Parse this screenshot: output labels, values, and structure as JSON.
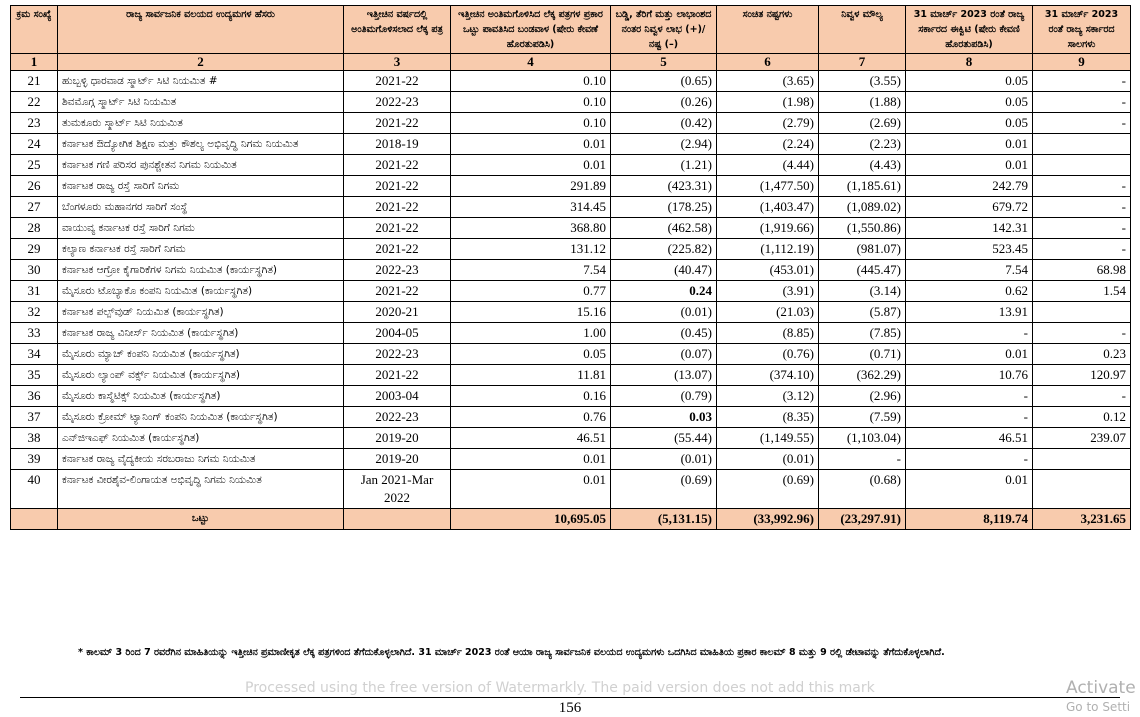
{
  "table": {
    "header": [
      "ಕ್ರಮ ಸಂಖ್ಯೆ",
      "ರಾಜ್ಯ ಸಾರ್ವಜನಿಕ ವಲಯದ ಉದ್ಯಮಗಳ ಹೆಸರು",
      "ಇತ್ತೀಚಿನ ವರ್ಷದಲ್ಲಿ ಅಂತಿಮಗೊಳಿಸಲಾದ ಲೆಕ್ಕ ಪತ್ರ",
      "ಇತ್ತೀಚಿನ ಅಂತಿಮಗೊಳಿಸಿದ ಲೆಕ್ಕ ಪತ್ರಗಳ ಪ್ರಕಾರ ಒಟ್ಟು ಪಾವತಿಸಿದ ಬಂಡವಾಳ (ಷೇರು ಕೇವಣೆ ಹೊರತುಪಡಿಸಿ)",
      "ಬಡ್ಡಿ, ತೆರಿಗೆ ಮತ್ತು ಲಾಭಾಂಶದ ನಂತರ ನಿವ್ವಳ ಲಾಭ (+)/ ನಷ್ಟ (–)",
      "ಸಂಚಿತ ನಷ್ಟಗಳು",
      "ನಿವ್ವಳ ಮೌಲ್ಯ",
      "31 ಮಾರ್ಚ್ 2023 ರಂತೆ ರಾಜ್ಯ ಸರ್ಕಾರದ ಈಕ್ವಿಟಿ (ಷೇರು ಕೇವಣಿ ಹೊರತುಪಡಿಸಿ)",
      "31 ಮಾರ್ಚ್ 2023 ರಂತೆ ರಾಜ್ಯ ಸರ್ಕಾರದ ಸಾಲಗಳು"
    ],
    "column_numbers": [
      1,
      2,
      3,
      4,
      5,
      6,
      7,
      8,
      9
    ],
    "rows": [
      [
        "21",
        "ಹುಬ್ಬಳ್ಳಿ ಧಾರವಾಡ ಸ್ಮಾರ್ಟ್ ಸಿಟಿ ನಿಯಮಿತ #",
        "2021-22",
        "0.10",
        "(0.65)",
        "(3.65)",
        "(3.55)",
        "0.05",
        "-"
      ],
      [
        "22",
        "ಶಿವಮೊಗ್ಗ ಸ್ಮಾರ್ಟ್ ಸಿಟಿ ನಿಯಮಿತ",
        "2022-23",
        "0.10",
        "(0.26)",
        "(1.98)",
        "(1.88)",
        "0.05",
        "-"
      ],
      [
        "23",
        "ತುಮಕೂರು ಸ್ಮಾರ್ಟ್ ಸಿಟಿ ನಿಯಮಿತ",
        "2021-22",
        "0.10",
        "(0.42)",
        "(2.79)",
        "(2.69)",
        "0.05",
        "-"
      ],
      [
        "24",
        "ಕರ್ನಾಟಕ ಔದ್ಯೋಗಿಕ ಶಿಕ್ಷಣ ಮತ್ತು ಕೌಶಲ್ಯ ಅಭಿವೃದ್ಧಿ ನಿಗಮ ನಿಯಮಿತ",
        "2018-19",
        "0.01",
        "(2.94)",
        "(2.24)",
        "(2.23)",
        "0.01",
        null
      ],
      [
        "25",
        "ಕರ್ನಾಟಕ ಗಣಿ ಪರಿಸರ ಪುನಶ್ಚೇತನ ನಿಗಮ ನಿಯಮಿತ",
        "2021-22",
        "0.01",
        "(1.21)",
        "(4.44)",
        "(4.43)",
        "0.01",
        null
      ],
      [
        "26",
        "ಕರ್ನಾಟಕ ರಾಜ್ಯ ರಸ್ತೆ ಸಾರಿಗೆ ನಿಗಮ",
        "2021-22",
        "291.89",
        "(423.31)",
        "(1,477.50)",
        "(1,185.61)",
        "242.79",
        "-"
      ],
      [
        "27",
        "ಬೆಂಗಳೂರು ಮಹಾನಗರ ಸಾರಿಗೆ ಸಂಸ್ಥೆ",
        "2021-22",
        "314.45",
        "(178.25)",
        "(1,403.47)",
        "(1,089.02)",
        "679.72",
        "-"
      ],
      [
        "28",
        "ವಾಯುವ್ಯ ಕರ್ನಾಟಕ ರಸ್ತೆ ಸಾರಿಗೆ ನಿಗಮ",
        "2021-22",
        "368.80",
        "(462.58)",
        "(1,919.66)",
        "(1,550.86)",
        "142.31",
        "-"
      ],
      [
        "29",
        "ಕಲ್ಯಾಣ ಕರ್ನಾಟಕ ರಸ್ತೆ ಸಾರಿಗೆ ನಿಗಮ",
        "2021-22",
        "131.12",
        "(225.82)",
        "(1,112.19)",
        "(981.07)",
        "523.45",
        "-"
      ],
      [
        "30",
        "ಕರ್ನಾಟಕ ಆಗ್ರೋ ಕೈಗಾರಿಕೆಗಳ ನಿಗಮ ನಿಯಮಿತ (ಕಾರ್ಯಸ್ಥಗಿತ)",
        "2022-23",
        "7.54",
        "(40.47)",
        "(453.01)",
        "(445.47)",
        "7.54",
        "68.98"
      ],
      [
        "31",
        "ಮೈಸೂರು ಟೊಬ್ಯಾಕೊ ಕಂಪನಿ ನಿಯಮಿತ (ಕಾರ್ಯಸ್ಥಗಿತ)",
        "2021-22",
        "0.77",
        "0.24",
        "(3.91)",
        "(3.14)",
        "0.62",
        "1.54"
      ],
      [
        "32",
        "ಕರ್ನಾಟಕ ಪಲ್ಪ್‌ವುಡ್ ನಿಯಮಿತ (ಕಾರ್ಯಸ್ಥಗಿತ)",
        "2020-21",
        "15.16",
        "(0.01)",
        "(21.03)",
        "(5.87)",
        "13.91",
        null
      ],
      [
        "33",
        "ಕರ್ನಾಟಕ ರಾಜ್ಯ ವಿನೀರ್ಸ್ ನಿಯಮಿತ (ಕಾರ್ಯಸ್ಥಗಿತ)",
        "2004-05",
        "1.00",
        "(0.45)",
        "(8.85)",
        "(7.85)",
        "-",
        "-"
      ],
      [
        "34",
        "ಮೈಸೂರು ಮ್ಯಾಚ್ ಕಂಪನಿ ನಿಯಮಿತ (ಕಾರ್ಯಸ್ಥಗಿತ)",
        "2022-23",
        "0.05",
        "(0.07)",
        "(0.76)",
        "(0.71)",
        "0.01",
        "0.23"
      ],
      [
        "35",
        "ಮೈಸೂರು ಲ್ಯಾಂಪ್ ವರ್ಕ್ಸ್ ನಿಯಮಿತ (ಕಾರ್ಯಸ್ಥಗಿತ)",
        "2021-22",
        "11.81",
        "(13.07)",
        "(374.10)",
        "(362.29)",
        "10.76",
        "120.97"
      ],
      [
        "36",
        "ಮೈಸೂರು ಕಾಸ್ಮೆಟಿಕ್ಸ್ ನಿಯಮಿತ (ಕಾರ್ಯಸ್ಥಗಿತ)",
        "2003-04",
        "0.16",
        "(0.79)",
        "(3.12)",
        "(2.96)",
        "-",
        "-"
      ],
      [
        "37",
        "ಮೈಸೂರು ಕ್ರೋಮ್ ಟ್ಯಾನಿಂಗ್ ಕಂಪನಿ ನಿಯಮಿತ (ಕಾರ್ಯಸ್ಥಗಿತ)",
        "2022-23",
        "0.76",
        "0.03",
        "(8.35)",
        "(7.59)",
        "-",
        "0.12"
      ],
      [
        "38",
        "ಎನ್‌ಜಿಇಎಫ್ ನಿಯಮಿತ (ಕಾರ್ಯಸ್ಥಗಿತ)",
        "2019-20",
        "46.51",
        "(55.44)",
        "(1,149.55)",
        "(1,103.04)",
        "46.51",
        "239.07"
      ],
      [
        "39",
        "ಕರ್ನಾಟಕ ರಾಜ್ಯ ವೈದ್ಯಕೀಯ ಸರಬರಾಜು ನಿಗಮ ನಿಯಮಿತ",
        "2019-20",
        "0.01",
        "(0.01)",
        "(0.01)",
        "-",
        "-",
        null
      ],
      [
        "40",
        "ಕರ್ನಾಟಕ ವೀರಶೈವ-ಲಿಂಗಾಯತ ಅಭಿವೃದ್ಧಿ ನಿಗಮ ನಿಯಮಿತ",
        "Jan 2021-Mar 2022",
        "0.01",
        "(0.69)",
        "(0.69)",
        "(0.68)",
        "0.01",
        null
      ]
    ],
    "total": {
      "label": "ಒಟ್ಟು",
      "values": [
        "10,695.05",
        "(5,131.15)",
        "(33,992.96)",
        "(23,297.91)",
        "8,119.74",
        "3,231.65"
      ]
    }
  },
  "footnote": "* ಕಾಲಮ್ 3 ರಿಂದ 7 ರವರೆಗಿನ ಮಾಹಿತಿಯನ್ನು ಇತ್ತೀಚಿನ ಪ್ರಮಾಣೀಕೃತ ಲೆಕ್ಕ ಪತ್ರಗಳಿಂದ ತೆಗೆದುಕೊಳ್ಳಲಾಗಿದೆ. 31 ಮಾರ್ಚ್ 2023 ರಂತೆ ಆಯಾ ರಾಜ್ಯ ಸಾರ್ವಜನಿಕ ವಲಯದ ಉದ್ಯಮಗಳು ಒದಗಿಸಿದ ಮಾಹಿತಿಯ ಪ್ರಕಾರ ಕಾಲಮ್ 8 ಮತ್ತು 9 ರಲ್ಲಿ ಡೇಟಾವನ್ನು ತೆಗೆದುಕೊಳ್ಳಲಾಗಿದೆ.",
  "watermark": "Processed using the free version of Watermarkly. The paid version does not add this mark",
  "activation": {
    "title": "Activate",
    "subtitle": "Go to Setti"
  },
  "page_number": "156"
}
